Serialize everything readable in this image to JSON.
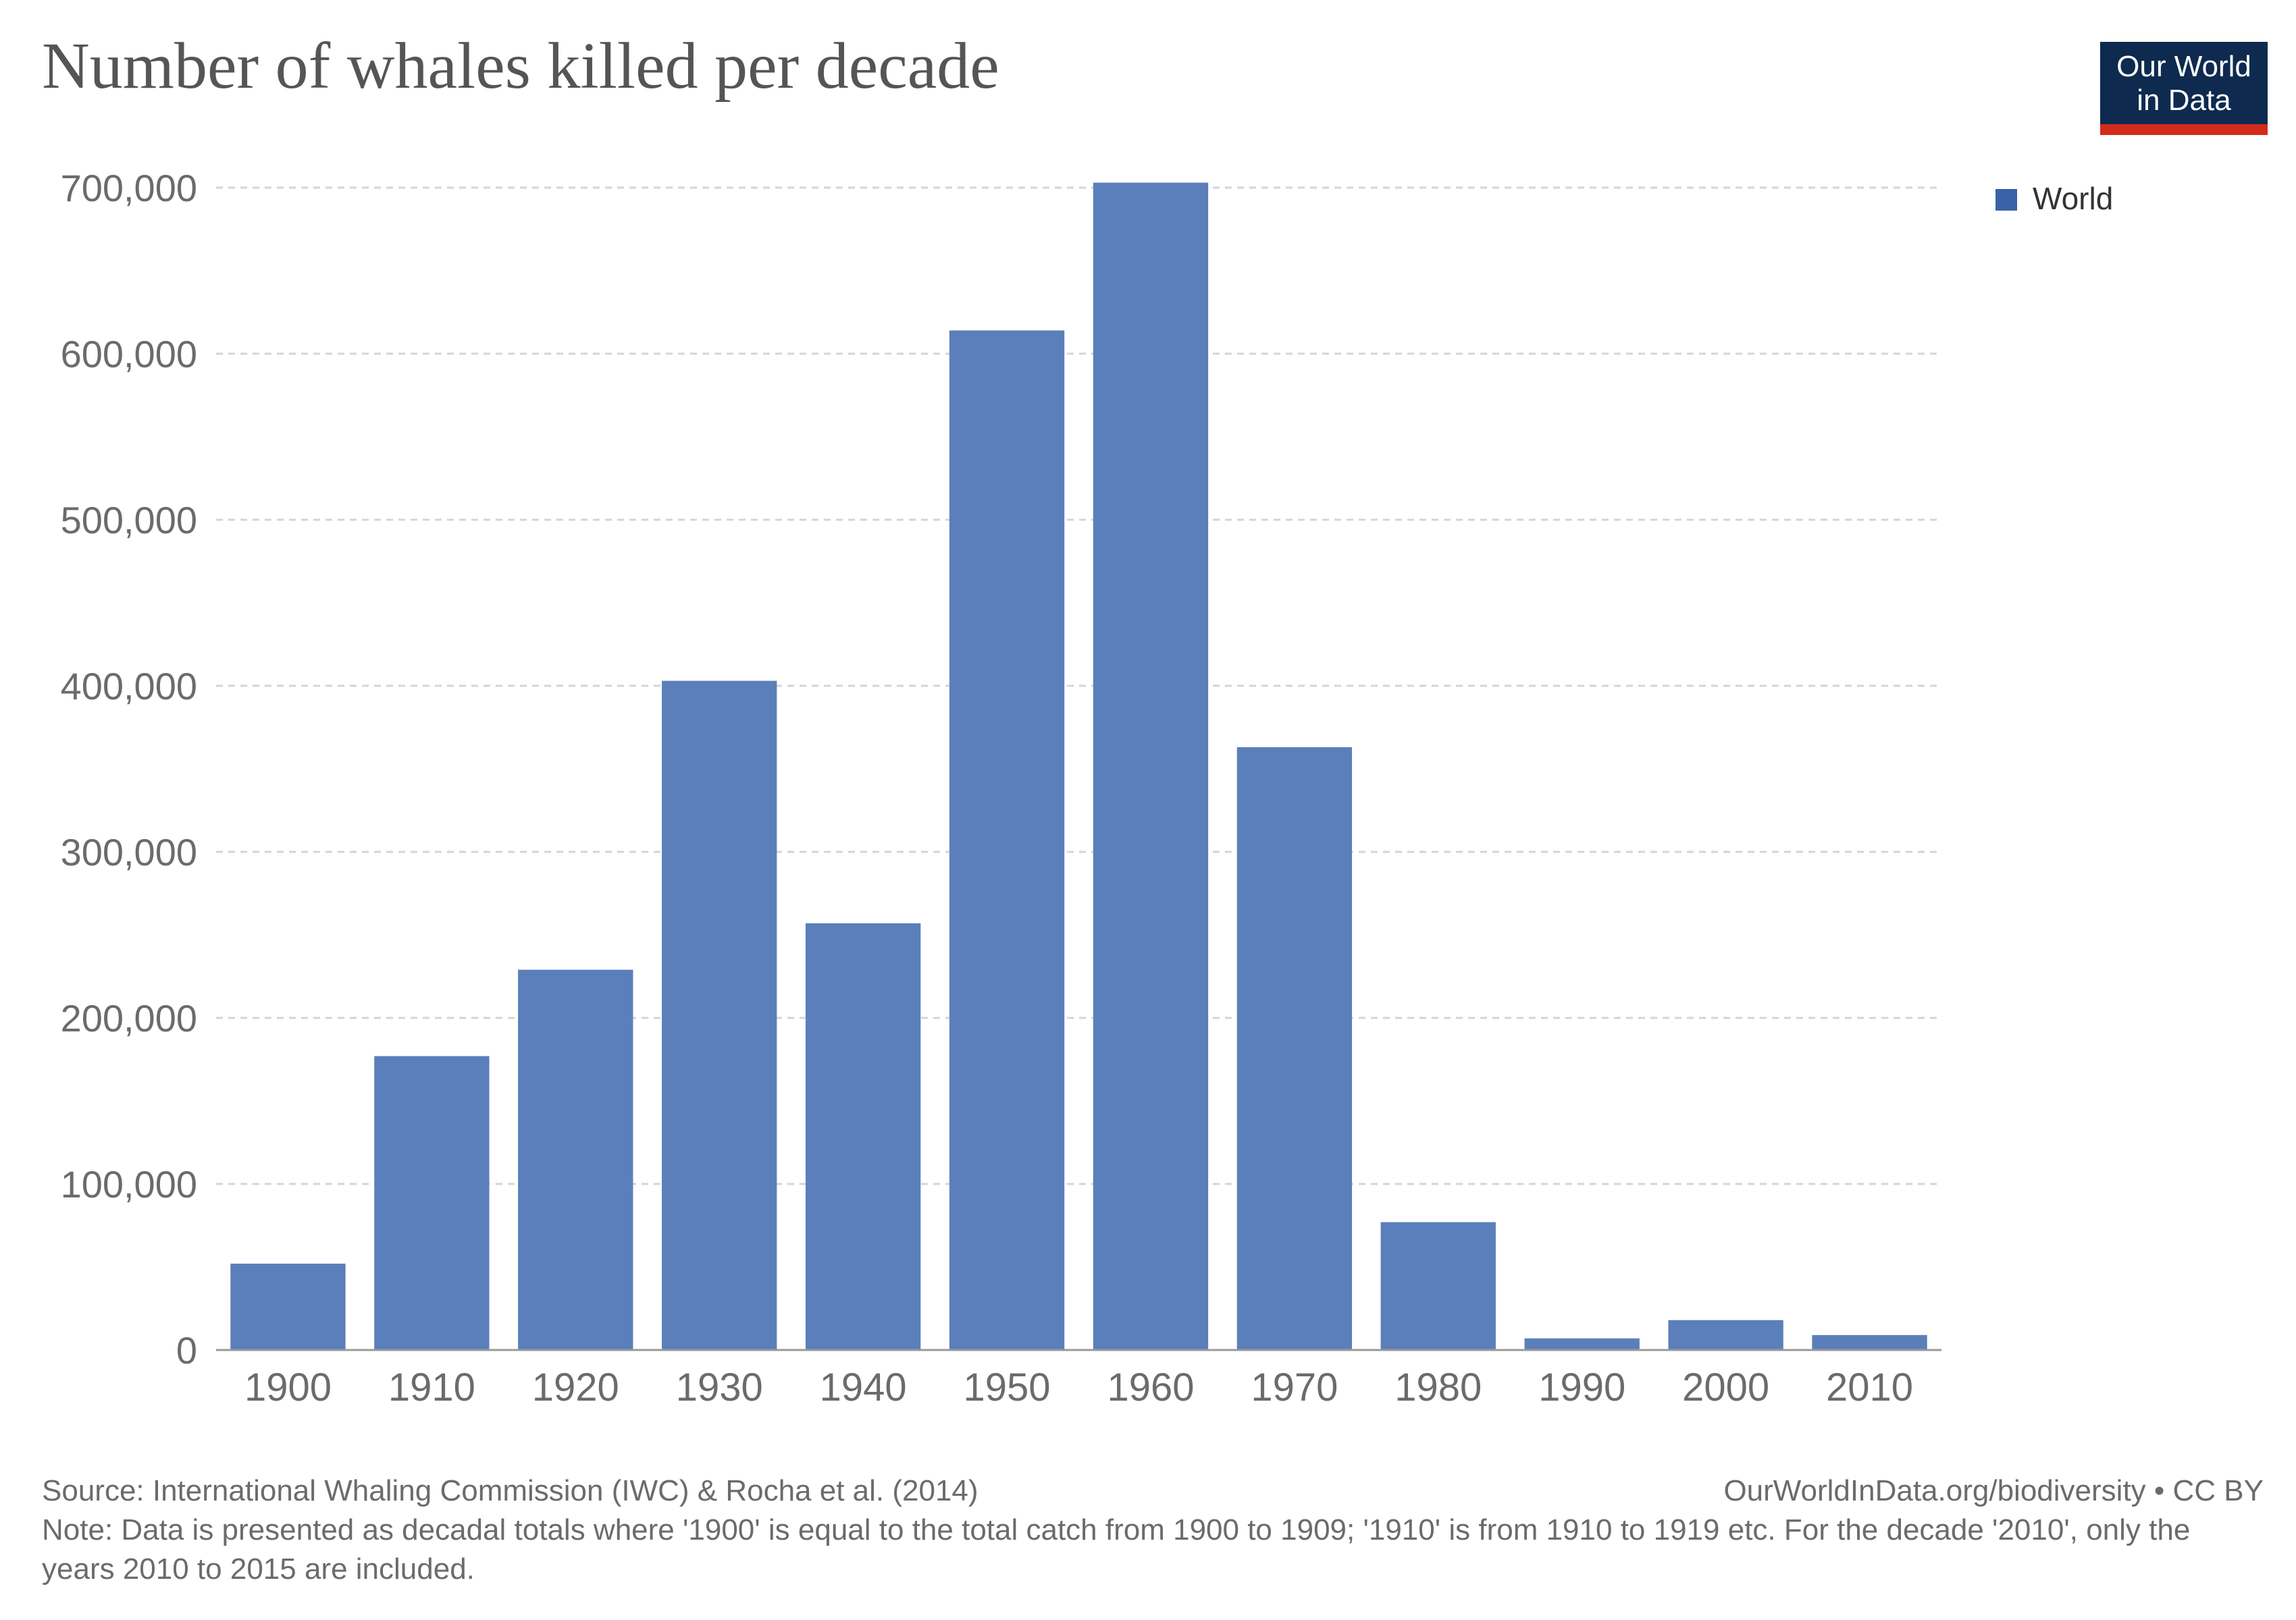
{
  "title": "Number of whales killed per decade",
  "logo": {
    "line1": "Our World",
    "line2": "in Data"
  },
  "legend": {
    "label": "World"
  },
  "colors": {
    "bar": "#5b7fba",
    "legend": "#3a62a8",
    "grid": "#d5d5d5",
    "axis": "#999999",
    "tick_text": "#6b6b6b"
  },
  "chart_data": {
    "type": "bar",
    "categories": [
      "1900",
      "1910",
      "1920",
      "1930",
      "1940",
      "1950",
      "1960",
      "1970",
      "1980",
      "1990",
      "2000",
      "2010"
    ],
    "series": [
      {
        "name": "World",
        "values": [
          52000,
          177000,
          229000,
          403000,
          257000,
          614000,
          703000,
          363000,
          77000,
          7000,
          18000,
          9000
        ]
      }
    ],
    "yticks": [
      0,
      100000,
      200000,
      300000,
      400000,
      500000,
      600000,
      700000
    ],
    "ytick_labels": [
      "0",
      "100,000",
      "200,000",
      "300,000",
      "400,000",
      "500,000",
      "600,000",
      "700,000"
    ],
    "ylim": [
      0,
      700000
    ],
    "grid": true,
    "legend_position": "top-right"
  },
  "footer": {
    "source": "Source: International Whaling Commission (IWC) & Rocha et al. (2014)",
    "credit": "OurWorldInData.org/biodiversity • CC BY",
    "note": "Note: Data is presented as decadal totals where '1900' is equal to the total catch from 1900 to 1909; '1910' is from 1910 to 1919 etc. For the decade '2010', only the years 2010 to 2015 are included."
  }
}
